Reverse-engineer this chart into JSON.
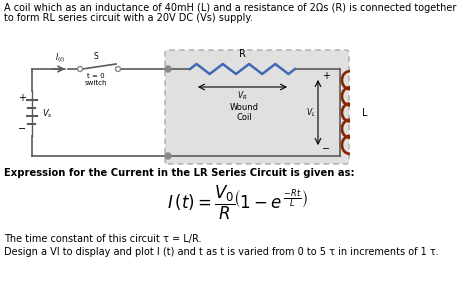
{
  "title_line1": "A coil which as an inductance of 40mH (L) and a resistance of 2Ωs (R) is connected together",
  "title_line2": "to form RL series circuit with a 20V DC (Vs) supply.",
  "expression_label": "Expression for the Current in the LR Series Circuit is given as:",
  "tau_text": "The time constant of this circuit τ = L/R.",
  "design_text": "Design a VI to display and plot I (t) and t as t is varied from 0 to 5 τ in increments of 1 τ.",
  "bg_color": "#ffffff",
  "text_color": "#000000",
  "wire_color": "#5a5a5a",
  "resistor_color": "#4169b0",
  "inductor_color": "#8B2500",
  "switch_color": "#5a5a5a",
  "battery_color": "#5a5a5a",
  "circuit_bg": "#e0e0e0",
  "circuit_border": "#aaaaaa",
  "node_color": "#888888"
}
